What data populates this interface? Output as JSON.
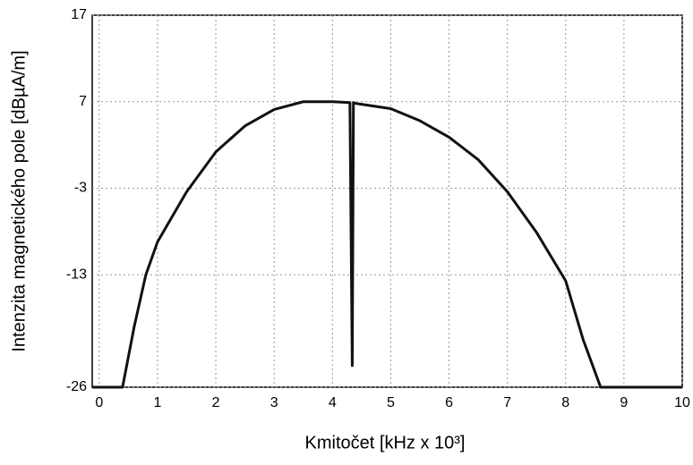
{
  "chart_data": {
    "type": "line",
    "xlabel": "Kmitočet  [kHz x 10³]",
    "ylabel": "Intenzita magnetického pole [dBµA/m]",
    "x": [
      -0.12,
      0.4,
      0.6,
      0.8,
      1,
      1.5,
      2,
      2.5,
      3,
      3.5,
      4,
      4.3,
      4.34,
      4.36,
      4.4,
      4.5,
      5,
      5.5,
      6,
      6.5,
      7,
      7.5,
      8,
      8.3,
      8.6,
      10
    ],
    "series": [
      {
        "color": "#111111",
        "values": [
          -26,
          -26,
          -19,
          -13,
          -9.2,
          -3.4,
          1.2,
          4.2,
          6.1,
          7,
          7,
          6.9,
          -23.5,
          6.9,
          6.8,
          6.7,
          6.2,
          4.8,
          2.9,
          0.3,
          -3.4,
          -8.1,
          -13.7,
          -20.5,
          -26,
          -26
        ]
      }
    ],
    "xlim": [
      -0.12,
      10
    ],
    "xticks": [
      0,
      1,
      2,
      3,
      4,
      5,
      6,
      7,
      8,
      9,
      10
    ],
    "ylim": [
      -26,
      17
    ],
    "yticks": [
      -26,
      -13,
      -3,
      7,
      17
    ],
    "grid": true
  }
}
